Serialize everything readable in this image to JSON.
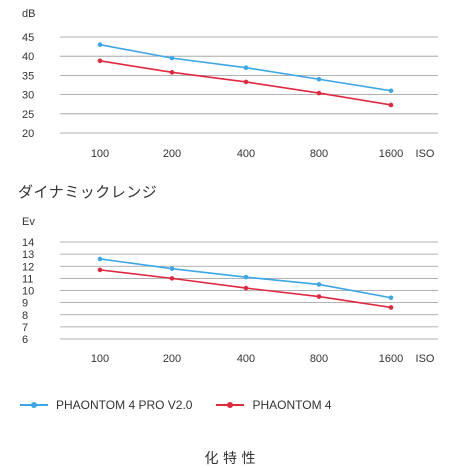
{
  "colors": {
    "series_a": "#3ba7e6",
    "series_b": "#e0283f",
    "grid": "#999999",
    "text": "#333333"
  },
  "section_title": "ダイナミックレンジ",
  "legend": [
    {
      "name": "PHAONTOM 4 PRO V2.0",
      "color": "#3ba7e6"
    },
    {
      "name": "PHAONTOM 4",
      "color": "#e0283f"
    }
  ],
  "bottom_partial_text": "化 特 性",
  "chart_data": [
    {
      "type": "line",
      "unit_label": "dB",
      "x_unit_label": "ISO",
      "categories": [
        "100",
        "200",
        "400",
        "800",
        "1600"
      ],
      "y_ticks": [
        20,
        25,
        30,
        35,
        40,
        45
      ],
      "ylim": [
        20,
        45
      ],
      "grid": true,
      "series": [
        {
          "name": "PHAONTOM 4 PRO V2.0",
          "values": [
            43.0,
            39.5,
            37.0,
            34.0,
            31.0
          ]
        },
        {
          "name": "PHAONTOM 4",
          "values": [
            38.8,
            35.8,
            33.3,
            30.4,
            27.3
          ]
        }
      ]
    },
    {
      "type": "line",
      "unit_label": "Ev",
      "x_unit_label": "ISO",
      "categories": [
        "100",
        "200",
        "400",
        "800",
        "1600"
      ],
      "y_ticks": [
        6,
        7,
        8,
        9,
        10,
        11,
        12,
        13,
        14
      ],
      "ylim": [
        6,
        14
      ],
      "grid": true,
      "series": [
        {
          "name": "PHAONTOM 4 PRO V2.0",
          "values": [
            12.6,
            11.8,
            11.1,
            10.5,
            9.4
          ]
        },
        {
          "name": "PHAONTOM 4",
          "values": [
            11.7,
            11.0,
            10.2,
            9.5,
            8.6
          ]
        }
      ]
    }
  ]
}
